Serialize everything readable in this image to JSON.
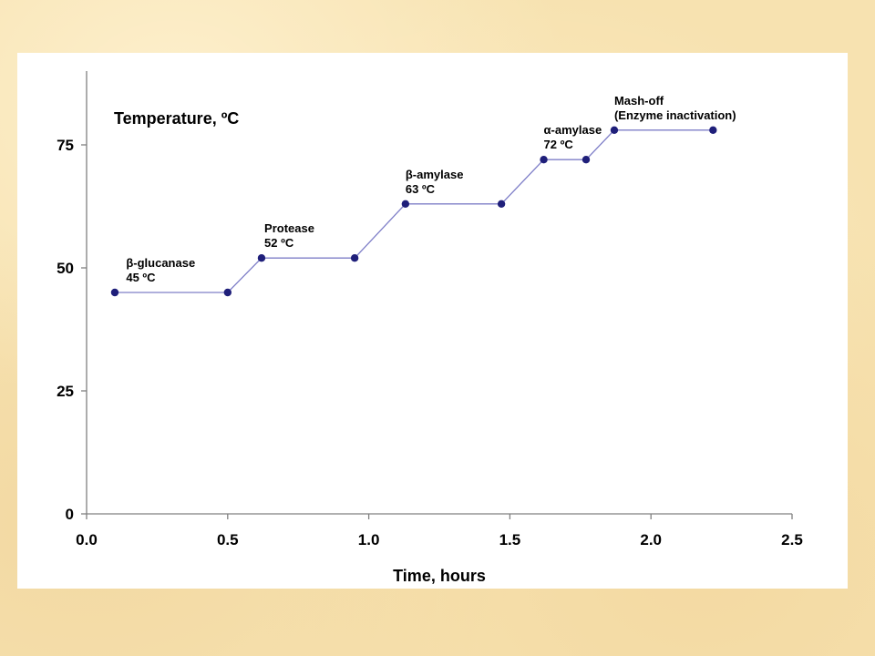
{
  "chart_data": {
    "type": "line",
    "title": "",
    "xlabel": "Time, hours",
    "ylabel": "Temperature, ºC",
    "xlim": [
      0,
      2.5
    ],
    "ylim": [
      0,
      90
    ],
    "xticks": [
      "0.0",
      "0.5",
      "1.0",
      "1.5",
      "2.0",
      "2.5"
    ],
    "xtick_values": [
      0,
      0.5,
      1.0,
      1.5,
      2.0,
      2.5
    ],
    "yticks": [
      "0",
      "25",
      "50",
      "75"
    ],
    "ytick_values": [
      0,
      25,
      50,
      75
    ],
    "grid": false,
    "legend": "none",
    "series": [
      {
        "x": [
          0.1,
          0.5,
          0.62,
          0.95,
          1.13,
          1.47,
          1.62,
          1.77,
          1.87,
          2.22
        ],
        "y": [
          45,
          45,
          52,
          52,
          63,
          63,
          72,
          72,
          78,
          78
        ],
        "color": "#1f1f7a",
        "line_color": "#7f7fc8"
      }
    ],
    "annotations": [
      {
        "lines": [
          "β-glucanase",
          "45 ºC"
        ],
        "x": 0.14,
        "y": 45
      },
      {
        "lines": [
          "Protease",
          "52 ºC"
        ],
        "x": 0.63,
        "y": 52
      },
      {
        "lines": [
          "β-amylase",
          "63 ºC"
        ],
        "x": 1.13,
        "y": 63
      },
      {
        "lines": [
          "α-amylase",
          "72 ºC"
        ],
        "x": 1.62,
        "y": 72
      },
      {
        "lines": [
          "Mash-off",
          "(Enzyme inactivation)"
        ],
        "x": 1.87,
        "y": 78
      }
    ]
  },
  "colors": {
    "slide_background": "#f7e2b0",
    "panel": "#ffffff",
    "axis": "#808080",
    "marker": "#1f1f7a",
    "line": "#7f7fc8"
  }
}
